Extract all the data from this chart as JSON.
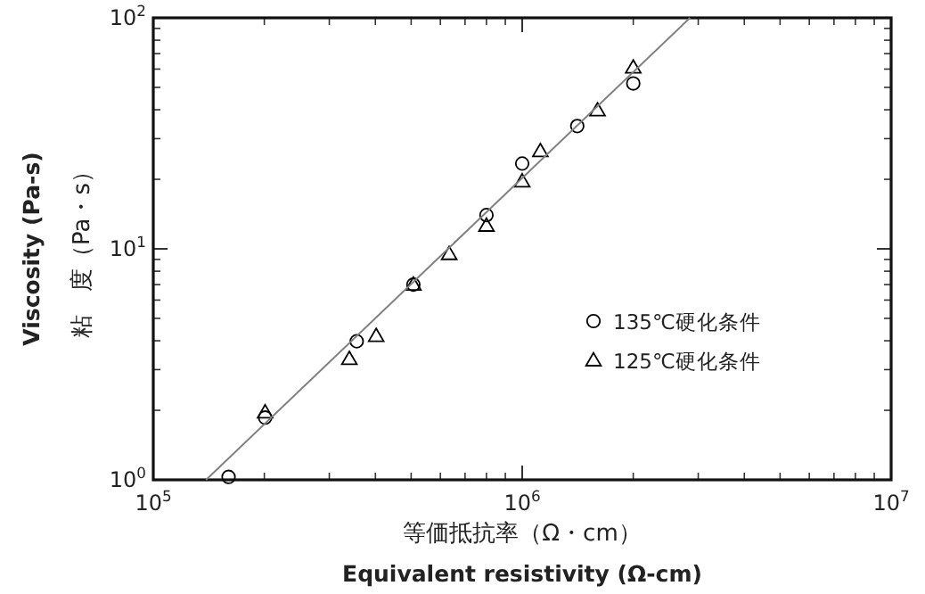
{
  "chart_data": {
    "type": "scatter",
    "xlabel": "等価抵抗率（Ω・cm）",
    "ylabel": "粘　度（Pa・s）",
    "annotations": [
      "Equivalent resistivity (Ω-cm)",
      "Viscosity (Pa-s)"
    ],
    "log": "xy",
    "xlim": [
      100000,
      10000000
    ],
    "ylim": [
      1,
      100
    ],
    "xticks": [
      {
        "value": 100000,
        "label": "10$^{5}$"
      },
      {
        "value": 1000000,
        "label": "10$^{6}$"
      },
      {
        "value": 10000000,
        "label": "10$^{7}$"
      }
    ],
    "yticks": [
      {
        "value": 1,
        "label": "10$^{0}$"
      },
      {
        "value": 10,
        "label": "10$^{1}$"
      },
      {
        "value": 100,
        "label": "10$^{2}$"
      }
    ],
    "legend": "right",
    "series": [
      {
        "name": "135℃硬化条件",
        "color": "#000000",
        "marker": "circle",
        "x": [
          160000,
          201000,
          356000,
          507000,
          800000,
          1000000,
          1410000,
          2000000
        ],
        "values": [
          1.03,
          1.86,
          3.98,
          7.0,
          14.0,
          23.4,
          34,
          52
        ]
      },
      {
        "name": "125℃硬化条件",
        "color": "#000000",
        "marker": "triangle",
        "x": [
          201000,
          340000,
          402000,
          507000,
          634000,
          800000,
          1000000,
          1120000,
          1600000,
          2000000
        ],
        "values": [
          1.96,
          3.34,
          4.2,
          7.0,
          9.5,
          12.6,
          19.6,
          26.5,
          39.8,
          61
        ]
      },
      {
        "type": "line",
        "color": "#808080",
        "marker": "none",
        "x": [
          139000,
          2850000
        ],
        "values": [
          1,
          100
        ]
      }
    ]
  }
}
